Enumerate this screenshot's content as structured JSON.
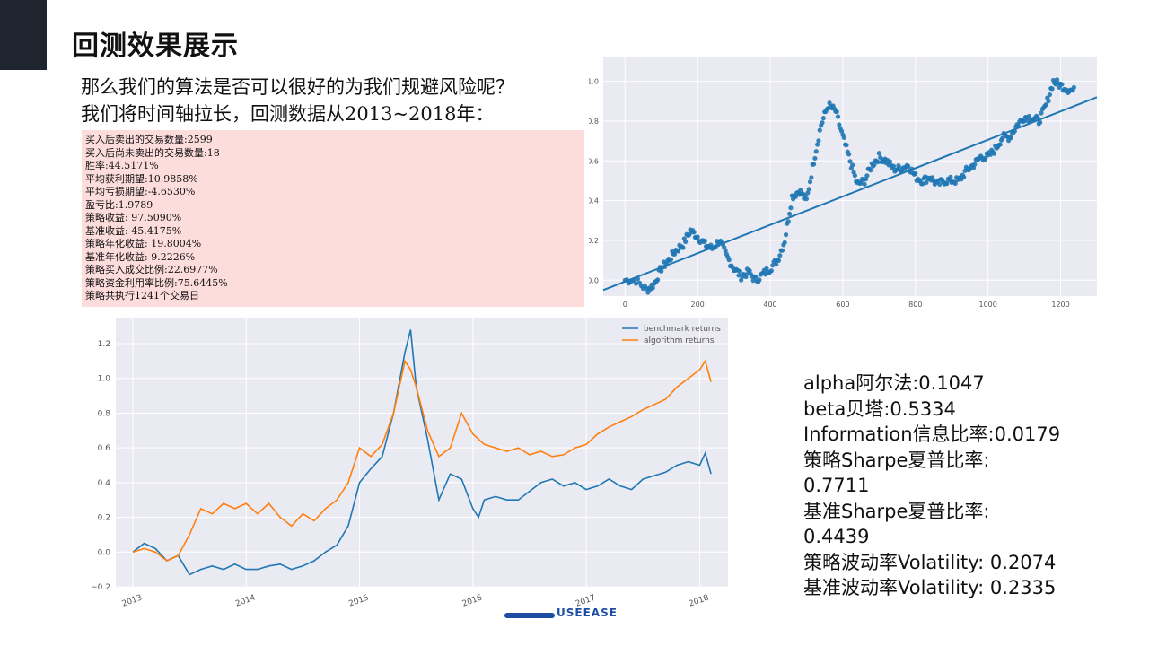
{
  "slide": {
    "title": "回测效果展示",
    "intro_lines": [
      "那么我们的算法是否可以很好的为我们规避风险呢？",
      "我们将时间轴拉长，回测数据从2013~2018年："
    ],
    "stats_lines": [
      "买入后卖出的交易数量:2599",
      "买入后尚未卖出的交易数量:18",
      "胜率:44.5171%",
      "平均获利期望:10.9858%",
      "平均亏损期望:-4.6530%",
      "盈亏比:1.9789",
      "策略收益: 97.5090%",
      "基准收益: 45.4175%",
      "策略年化收益: 19.8004%",
      "基准年化收益: 9.2226%",
      "策略买入成交比例:22.6977%",
      "策略资金利用率比例:75.6445%",
      "策略共执行1241个交易日"
    ],
    "metrics_lines": [
      "alpha阿尔法:0.1047",
      "beta贝塔:0.5334",
      "Information信息比率:0.0179",
      "策略Sharpe夏普比率:",
      "0.7711",
      "基准Sharpe夏普比率:",
      "0.4439",
      "策略波动率Volatility: 0.2074",
      "基准波动率Volatility: 0.2335"
    ],
    "logo_text": "USEEASE",
    "colors": {
      "corner": "#1e252e",
      "stats_bg": "#fddcdc",
      "blue": "#1f77b4",
      "orange": "#ff7f0e",
      "plot_bg": "#eaeaf2"
    }
  },
  "chart_data": [
    {
      "type": "scatter",
      "title": "",
      "xlabel": "",
      "ylabel": "",
      "xlim": [
        -60,
        1300
      ],
      "ylim": [
        -0.08,
        1.12
      ],
      "x_ticks": [
        "0",
        "200",
        "400",
        "600",
        "800",
        "1000",
        "1200"
      ],
      "y_ticks": [
        "0.0",
        "0.2",
        "0.4",
        "0.6",
        "0.8",
        "1.0"
      ],
      "grid": true,
      "series": [
        {
          "x": [
            0,
            30,
            60,
            80,
            100,
            120,
            140,
            160,
            180,
            200,
            220,
            240,
            260,
            280,
            300,
            320,
            340,
            360,
            380,
            400,
            420,
            440,
            460,
            480,
            500,
            520,
            540,
            560,
            580,
            600,
            620,
            640,
            660,
            680,
            700,
            720,
            740,
            760,
            780,
            800,
            820,
            840,
            860,
            880,
            900,
            920,
            940,
            960,
            980,
            1000,
            1020,
            1040,
            1060,
            1080,
            1100,
            1120,
            1140,
            1160,
            1180,
            1200,
            1220,
            1240
          ],
          "y": [
            0.0,
            0.0,
            -0.05,
            -0.02,
            0.06,
            0.1,
            0.15,
            0.18,
            0.25,
            0.22,
            0.18,
            0.16,
            0.2,
            0.12,
            0.06,
            0.02,
            0.04,
            0.0,
            0.03,
            0.06,
            0.1,
            0.2,
            0.42,
            0.45,
            0.4,
            0.6,
            0.78,
            0.88,
            0.85,
            0.72,
            0.6,
            0.48,
            0.5,
            0.58,
            0.62,
            0.6,
            0.56,
            0.56,
            0.58,
            0.52,
            0.5,
            0.52,
            0.48,
            0.5,
            0.5,
            0.5,
            0.55,
            0.58,
            0.62,
            0.62,
            0.66,
            0.72,
            0.72,
            0.78,
            0.82,
            0.82,
            0.8,
            0.88,
            1.0,
            0.98,
            0.96,
            0.95
          ]
        },
        {
          "name": "fit",
          "type": "line",
          "x": [
            -60,
            1300
          ],
          "y": [
            -0.05,
            0.92
          ]
        }
      ]
    },
    {
      "type": "line",
      "title": "",
      "xlabel": "",
      "ylabel": "",
      "xlim": [
        2012.85,
        2018.25
      ],
      "ylim": [
        -0.2,
        1.35
      ],
      "x_ticks": [
        "2013",
        "2014",
        "2015",
        "2016",
        "2017",
        "2018"
      ],
      "y_ticks": [
        "−0.2",
        "0.0",
        "0.2",
        "0.4",
        "0.6",
        "0.8",
        "1.0",
        "1.2"
      ],
      "legend": "top-right",
      "grid": true,
      "series": [
        {
          "name": "benchmark returns",
          "x": [
            2013.0,
            2013.1,
            2013.2,
            2013.3,
            2013.4,
            2013.5,
            2013.6,
            2013.7,
            2013.8,
            2013.9,
            2014.0,
            2014.1,
            2014.2,
            2014.3,
            2014.4,
            2014.5,
            2014.6,
            2014.7,
            2014.8,
            2014.9,
            2015.0,
            2015.1,
            2015.2,
            2015.3,
            2015.4,
            2015.45,
            2015.5,
            2015.6,
            2015.7,
            2015.8,
            2015.9,
            2016.0,
            2016.05,
            2016.1,
            2016.2,
            2016.3,
            2016.4,
            2016.5,
            2016.6,
            2016.7,
            2016.8,
            2016.9,
            2017.0,
            2017.1,
            2017.2,
            2017.3,
            2017.4,
            2017.5,
            2017.6,
            2017.7,
            2017.8,
            2017.9,
            2018.0,
            2018.05,
            2018.1
          ],
          "y": [
            0.0,
            0.05,
            0.02,
            -0.05,
            -0.02,
            -0.13,
            -0.1,
            -0.08,
            -0.1,
            -0.07,
            -0.1,
            -0.1,
            -0.08,
            -0.07,
            -0.1,
            -0.08,
            -0.05,
            0.0,
            0.04,
            0.15,
            0.4,
            0.48,
            0.55,
            0.8,
            1.15,
            1.28,
            0.95,
            0.65,
            0.3,
            0.45,
            0.42,
            0.25,
            0.2,
            0.3,
            0.32,
            0.3,
            0.3,
            0.35,
            0.4,
            0.42,
            0.38,
            0.4,
            0.36,
            0.38,
            0.42,
            0.38,
            0.36,
            0.42,
            0.44,
            0.46,
            0.5,
            0.52,
            0.5,
            0.57,
            0.45
          ]
        },
        {
          "name": "algorithm returns",
          "x": [
            2013.0,
            2013.1,
            2013.2,
            2013.3,
            2013.4,
            2013.5,
            2013.6,
            2013.7,
            2013.8,
            2013.9,
            2014.0,
            2014.1,
            2014.2,
            2014.3,
            2014.4,
            2014.5,
            2014.6,
            2014.7,
            2014.8,
            2014.9,
            2015.0,
            2015.1,
            2015.2,
            2015.3,
            2015.4,
            2015.45,
            2015.5,
            2015.6,
            2015.7,
            2015.8,
            2015.9,
            2016.0,
            2016.05,
            2016.1,
            2016.2,
            2016.3,
            2016.4,
            2016.5,
            2016.6,
            2016.7,
            2016.8,
            2016.9,
            2017.0,
            2017.1,
            2017.2,
            2017.3,
            2017.4,
            2017.5,
            2017.6,
            2017.7,
            2017.8,
            2017.9,
            2018.0,
            2018.05,
            2018.1
          ],
          "y": [
            0.0,
            0.02,
            0.0,
            -0.05,
            -0.02,
            0.1,
            0.25,
            0.22,
            0.28,
            0.25,
            0.28,
            0.22,
            0.28,
            0.2,
            0.15,
            0.22,
            0.18,
            0.25,
            0.3,
            0.4,
            0.6,
            0.55,
            0.62,
            0.8,
            1.1,
            1.05,
            0.95,
            0.7,
            0.55,
            0.6,
            0.8,
            0.68,
            0.65,
            0.62,
            0.6,
            0.58,
            0.6,
            0.56,
            0.58,
            0.55,
            0.56,
            0.6,
            0.62,
            0.68,
            0.72,
            0.75,
            0.78,
            0.82,
            0.85,
            0.88,
            0.95,
            1.0,
            1.05,
            1.1,
            0.98
          ]
        }
      ]
    }
  ]
}
